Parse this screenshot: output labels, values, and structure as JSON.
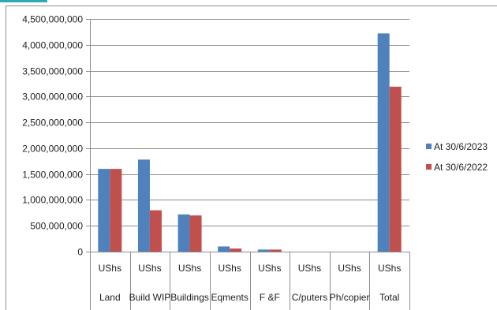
{
  "chart_data": {
    "type": "bar",
    "categories": [
      "Land",
      "Build WIP",
      "Buildings",
      "Eqments",
      "F &F",
      "C/puters",
      "Ph/copier",
      "Total"
    ],
    "unit_row": [
      "UShs",
      "UShs",
      "UShs",
      "UShs",
      "UShs",
      "UShs",
      "UShs",
      "UShs"
    ],
    "series": [
      {
        "name": "At 30/6/2023",
        "color": "#4f81bd",
        "values": [
          1600000000,
          1780000000,
          720000000,
          100000000,
          40000000,
          0,
          0,
          4220000000
        ]
      },
      {
        "name": "At 30/6/2022",
        "color": "#c0504d",
        "values": [
          1600000000,
          800000000,
          700000000,
          60000000,
          40000000,
          0,
          0,
          3190000000
        ]
      }
    ],
    "ylim": [
      0,
      4500000000
    ],
    "yticks": [
      0,
      500000000,
      1000000000,
      1500000000,
      2000000000,
      2500000000,
      3000000000,
      3500000000,
      4000000000,
      4500000000
    ],
    "ytick_labels": [
      "0",
      "500,000,000",
      "1,000,000,000",
      "1,500,000,000",
      "2,000,000,000",
      "2,500,000,000",
      "3,000,000,000",
      "3,500,000,000",
      "4,000,000,000",
      "4,500,000,000"
    ],
    "grid": true,
    "legend_position": "right"
  }
}
